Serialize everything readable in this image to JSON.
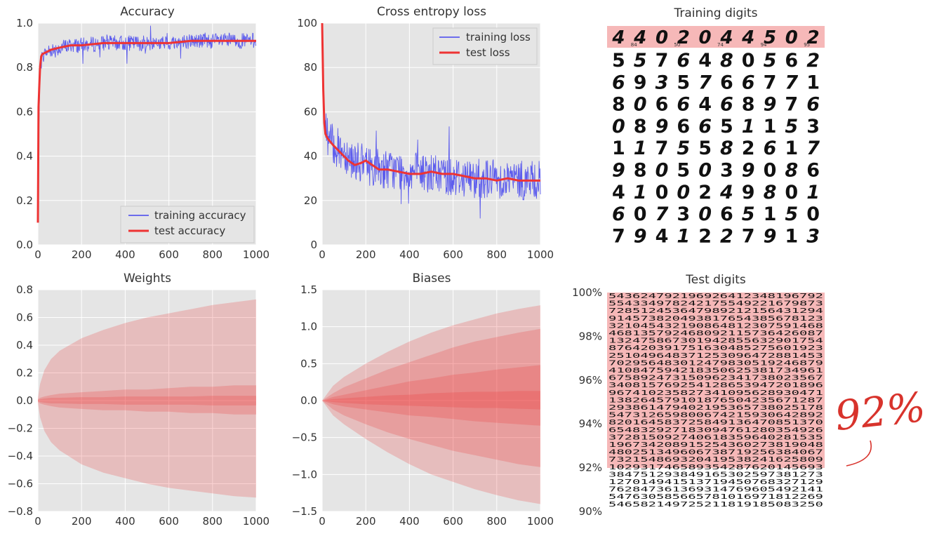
{
  "chart_data": [
    {
      "id": "accuracy",
      "type": "line",
      "title": "Accuracy",
      "xlim": [
        0,
        1000
      ],
      "ylim": [
        0,
        1.0
      ],
      "xticks": [
        0,
        200,
        400,
        600,
        800,
        1000
      ],
      "yticks": [
        0.0,
        0.2,
        0.4,
        0.6,
        0.8,
        1.0
      ],
      "ytick_labels": [
        "0.0",
        "0.2",
        "0.4",
        "0.6",
        "0.8",
        "1.0"
      ],
      "grid": true,
      "legend_position": "bottom-right",
      "series": [
        {
          "name": "training accuracy",
          "color": "#4444ee",
          "x": [
            0,
            5,
            10,
            15,
            20,
            40,
            60,
            80,
            100,
            150,
            200,
            300,
            400,
            500,
            600,
            700,
            800,
            900,
            1000
          ],
          "values": [
            0.1,
            0.56,
            0.8,
            0.82,
            0.85,
            0.87,
            0.88,
            0.88,
            0.89,
            0.9,
            0.9,
            0.91,
            0.91,
            0.91,
            0.91,
            0.92,
            0.92,
            0.92,
            0.92
          ],
          "noise": 0.035
        },
        {
          "name": "test accuracy",
          "color": "#ee3333",
          "x": [
            0,
            3,
            6,
            10,
            15,
            20,
            40,
            60,
            100,
            150,
            200,
            300,
            400,
            500,
            600,
            700,
            800,
            900,
            1000
          ],
          "values": [
            0.1,
            0.62,
            0.71,
            0.8,
            0.85,
            0.86,
            0.87,
            0.88,
            0.89,
            0.9,
            0.9,
            0.91,
            0.91,
            0.91,
            0.91,
            0.92,
            0.92,
            0.92,
            0.92
          ]
        }
      ]
    },
    {
      "id": "loss",
      "type": "line",
      "title": "Cross entropy loss",
      "xlim": [
        0,
        1000
      ],
      "ylim": [
        0,
        100
      ],
      "xticks": [
        0,
        200,
        400,
        600,
        800,
        1000
      ],
      "yticks": [
        0,
        20,
        40,
        60,
        80,
        100
      ],
      "ytick_labels": [
        "0",
        "20",
        "40",
        "60",
        "80",
        "100"
      ],
      "grid": true,
      "legend_position": "top-right",
      "series": [
        {
          "name": "training loss",
          "color": "#4444ee",
          "x": [
            0,
            10,
            20,
            50,
            100,
            150,
            200,
            300,
            400,
            500,
            600,
            700,
            800,
            900,
            1000
          ],
          "values": [
            100,
            55,
            50,
            45,
            42,
            38,
            36,
            34,
            33,
            32,
            31,
            30,
            30,
            29,
            29
          ],
          "noise": 9
        },
        {
          "name": "test loss",
          "color": "#ee3333",
          "x": [
            0,
            5,
            10,
            15,
            25,
            50,
            80,
            120,
            150,
            180,
            200,
            230,
            260,
            300,
            350,
            400,
            450,
            500,
            550,
            600,
            650,
            700,
            750,
            800,
            850,
            900,
            950,
            1000
          ],
          "values": [
            100,
            70,
            55,
            50,
            48,
            45,
            42,
            38,
            36,
            37,
            38,
            36,
            34,
            34,
            33,
            32,
            32,
            33,
            32,
            32,
            31,
            30,
            30,
            29,
            30,
            29,
            29,
            29
          ]
        }
      ]
    },
    {
      "id": "weights",
      "type": "area",
      "title": "Weights",
      "xlim": [
        0,
        1000
      ],
      "ylim": [
        -0.8,
        0.8
      ],
      "xticks": [
        0,
        200,
        400,
        600,
        800,
        1000
      ],
      "yticks": [
        -0.8,
        -0.6,
        -0.4,
        -0.2,
        0.0,
        0.2,
        0.4,
        0.6,
        0.8
      ],
      "ytick_labels": [
        "−0.8",
        "−0.6",
        "−0.4",
        "−0.2",
        "0.0",
        "0.2",
        "0.4",
        "0.6",
        "0.8"
      ],
      "grid": true,
      "color": "#ee3333",
      "x": [
        0,
        10,
        30,
        60,
        100,
        200,
        300,
        400,
        500,
        600,
        700,
        800,
        900,
        1000
      ],
      "bands": [
        {
          "upper": [
            0.02,
            0.12,
            0.22,
            0.3,
            0.36,
            0.45,
            0.51,
            0.56,
            0.6,
            0.63,
            0.66,
            0.69,
            0.71,
            0.73
          ],
          "lower": [
            -0.02,
            -0.12,
            -0.22,
            -0.3,
            -0.36,
            -0.46,
            -0.52,
            -0.56,
            -0.6,
            -0.63,
            -0.65,
            -0.67,
            -0.69,
            -0.7
          ]
        },
        {
          "upper": [
            0.01,
            0.02,
            0.03,
            0.04,
            0.05,
            0.06,
            0.07,
            0.08,
            0.08,
            0.09,
            0.1,
            0.1,
            0.11,
            0.11
          ],
          "lower": [
            -0.01,
            -0.02,
            -0.03,
            -0.04,
            -0.05,
            -0.06,
            -0.07,
            -0.07,
            -0.08,
            -0.08,
            -0.09,
            -0.09,
            -0.1,
            -0.1
          ]
        },
        {
          "upper": [
            0.005,
            0.01,
            0.015,
            0.02,
            0.02,
            0.025,
            0.025,
            0.03,
            0.03,
            0.03,
            0.03,
            0.035,
            0.035,
            0.035
          ],
          "lower": [
            -0.005,
            -0.01,
            -0.015,
            -0.02,
            -0.02,
            -0.025,
            -0.025,
            -0.03,
            -0.03,
            -0.03,
            -0.03,
            -0.035,
            -0.035,
            -0.035
          ]
        }
      ]
    },
    {
      "id": "biases",
      "type": "area",
      "title": "Biases",
      "xlim": [
        0,
        1000
      ],
      "ylim": [
        -1.5,
        1.5
      ],
      "xticks": [
        0,
        200,
        400,
        600,
        800,
        1000
      ],
      "yticks": [
        -1.5,
        -1.0,
        -0.5,
        0.0,
        0.5,
        1.0,
        1.5
      ],
      "ytick_labels": [
        "−1.5",
        "−1.0",
        "−0.5",
        "0.0",
        "0.5",
        "1.0",
        "1.5"
      ],
      "grid": true,
      "color": "#ee3333",
      "x": [
        0,
        50,
        100,
        200,
        300,
        400,
        500,
        600,
        700,
        800,
        900,
        1000
      ],
      "bands": [
        {
          "upper": [
            0.0,
            0.2,
            0.32,
            0.5,
            0.66,
            0.8,
            0.92,
            1.02,
            1.1,
            1.18,
            1.24,
            1.29
          ],
          "lower": [
            0.0,
            -0.2,
            -0.32,
            -0.52,
            -0.7,
            -0.86,
            -1.0,
            -1.1,
            -1.2,
            -1.28,
            -1.35,
            -1.4
          ]
        },
        {
          "upper": [
            0.0,
            0.1,
            0.18,
            0.3,
            0.42,
            0.52,
            0.62,
            0.72,
            0.8,
            0.86,
            0.92,
            0.97
          ],
          "lower": [
            0.0,
            -0.12,
            -0.2,
            -0.32,
            -0.43,
            -0.52,
            -0.6,
            -0.68,
            -0.74,
            -0.8,
            -0.86,
            -0.9
          ]
        },
        {
          "upper": [
            0.0,
            0.05,
            0.08,
            0.14,
            0.2,
            0.26,
            0.3,
            0.35,
            0.38,
            0.42,
            0.45,
            0.48
          ],
          "lower": [
            0.0,
            -0.05,
            -0.08,
            -0.12,
            -0.16,
            -0.2,
            -0.22,
            -0.25,
            -0.28,
            -0.3,
            -0.32,
            -0.34
          ]
        },
        {
          "upper": [
            0.0,
            0.02,
            0.03,
            0.05,
            0.07,
            0.08,
            0.1,
            0.11,
            0.12,
            0.12,
            0.13,
            0.13
          ],
          "lower": [
            0.0,
            -0.02,
            -0.03,
            -0.05,
            -0.06,
            -0.07,
            -0.08,
            -0.09,
            -0.1,
            -0.1,
            -0.11,
            -0.12
          ]
        }
      ]
    }
  ],
  "training_digits": {
    "title": "Training digits",
    "header_row": "4402044502",
    "header_small_labels": [
      "84",
      "50",
      "74",
      "94",
      "95"
    ],
    "rows": [
      "5576480562",
      "6935766771",
      "8066468976",
      "0896651153",
      "1175582617",
      "9805039086",
      "4100249801",
      "6073065150",
      "7941227913"
    ]
  },
  "test_digits": {
    "title": "Test digits",
    "ytick_labels": [
      "100%",
      "98%",
      "96%",
      "94%",
      "92%",
      "90%"
    ],
    "ytick_values": [
      100,
      98,
      96,
      94,
      92,
      90
    ],
    "ylim": [
      90,
      100
    ],
    "misclassified_band_bottom": 92,
    "rows_text": [
      "543624792196926412348196792",
      "554334978242175549221679873",
      "728512453647989212156431294",
      "914573820493817654385678123",
      "321045432190864812307591468",
      "468135792468092115736426087",
      "132475867301942855632901754",
      "876420391751630485275601923",
      "251049648371253096472881453",
      "702956483012479830519246879",
      "410847594218350625381734961",
      "675892473150962341738023567",
      "340815769254128653947201896",
      "967410235827341095628930471",
      "138264579101876504235671287",
      "293861479402195365738025178",
      "547312659800674215930642892",
      "820164583725849136470851370",
      "654832927183094761280354926",
      "372815092740618359640281535",
      "196734208915254360273819048",
      "480251349606738719256384067",
      "732154869320419538241625809",
      "102931746589354287620145693",
      "384751293849165302597381273",
      "127014941513719450768327129",
      "762847361369314769605492141",
      "547630585665781016971812269",
      "546582149725211819185083250"
    ]
  },
  "annotation": {
    "text": "92%"
  }
}
